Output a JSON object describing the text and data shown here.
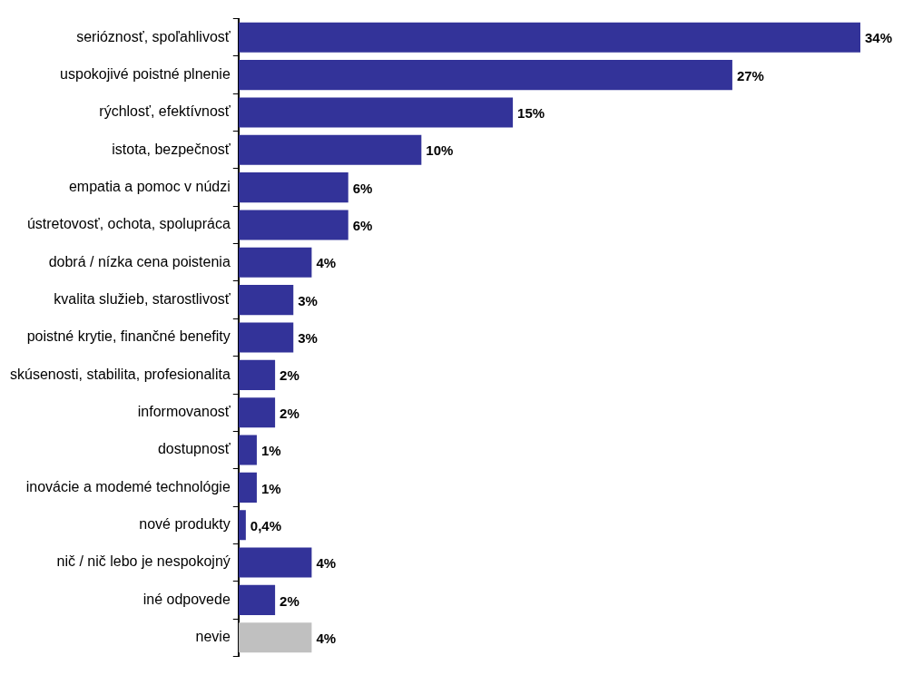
{
  "chart_data": {
    "type": "bar",
    "orientation": "horizontal",
    "categories": [
      "serióznosť, spoľahlivosť",
      "uspokojivé poistné plnenie",
      "rýchlosť, efektívnosť",
      "istota, bezpečnosť",
      "empatia a pomoc v núdzi",
      "ústretovosť, ochota, spolupráca",
      "dobrá / nízka cena poistenia",
      "kvalita služieb, starostlivosť",
      "poistné krytie, finančné benefity",
      "skúsenosti, stabilita, profesionalita",
      "informovanosť",
      "dostupnosť",
      "inovácie a modemé technológie",
      "nové produkty",
      "nič / nič lebo je nespokojný",
      "iné odpovede",
      "nevie"
    ],
    "values": [
      34,
      27,
      15,
      10,
      6,
      6,
      4,
      3,
      3,
      2,
      2,
      1,
      1,
      0.4,
      4,
      2,
      4
    ],
    "colors": [
      "#333399",
      "#333399",
      "#333399",
      "#333399",
      "#333399",
      "#333399",
      "#333399",
      "#333399",
      "#333399",
      "#333399",
      "#333399",
      "#333399",
      "#333399",
      "#333399",
      "#333399",
      "#333399",
      "#c0c0c0"
    ],
    "value_labels": [
      "34%",
      "27%",
      "15%",
      "10%",
      "6%",
      "6%",
      "4%",
      "3%",
      "3%",
      "2%",
      "2%",
      "1%",
      "1%",
      "0,4%",
      "4%",
      "2%",
      "4%"
    ],
    "legend": false
  }
}
